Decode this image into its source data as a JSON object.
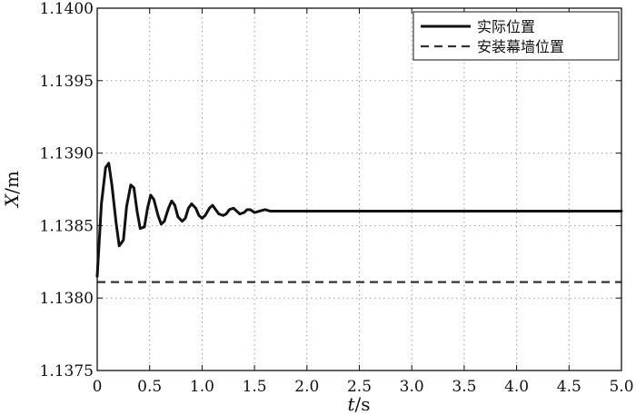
{
  "chart_data": {
    "type": "line",
    "xlabel": {
      "italic": "t",
      "rest": "/s"
    },
    "ylabel": {
      "italic": "X",
      "rest": "/m"
    },
    "xlim": [
      0,
      5.0
    ],
    "ylim": [
      1.1375,
      1.14
    ],
    "x_ticks": [
      0,
      0.5,
      1.0,
      1.5,
      2.0,
      2.5,
      3.0,
      3.5,
      4.0,
      4.5,
      5.0
    ],
    "x_tick_labels": [
      "0",
      "0.5",
      "1.0",
      "1.5",
      "2.0",
      "2.5",
      "3.0",
      "3.5",
      "4.0",
      "4.5",
      "5.0"
    ],
    "y_ticks": [
      1.1375,
      1.138,
      1.1385,
      1.139,
      1.1395,
      1.14
    ],
    "y_tick_labels": [
      "1.1375",
      "1.1380",
      "1.1385",
      "1.1390",
      "1.1395",
      "1.1400"
    ],
    "grid": true,
    "legend_position": "top-right",
    "series": [
      {
        "name": "实际位置",
        "style": "solid",
        "color": "#111111",
        "x": [
          0.0,
          0.04,
          0.08,
          0.11,
          0.14,
          0.18,
          0.21,
          0.25,
          0.28,
          0.32,
          0.35,
          0.38,
          0.41,
          0.45,
          0.48,
          0.51,
          0.54,
          0.58,
          0.61,
          0.64,
          0.68,
          0.71,
          0.74,
          0.77,
          0.81,
          0.84,
          0.87,
          0.9,
          0.94,
          0.97,
          1.0,
          1.03,
          1.07,
          1.1,
          1.13,
          1.16,
          1.2,
          1.23,
          1.26,
          1.3,
          1.33,
          1.36,
          1.4,
          1.43,
          1.46,
          1.5,
          1.55,
          1.6,
          1.65,
          1.7,
          1.75,
          1.8,
          1.9,
          2.0,
          2.2,
          2.5,
          3.0,
          3.5,
          4.0,
          4.5,
          5.0
        ],
        "y": [
          1.13815,
          1.13865,
          1.1389,
          1.13893,
          1.13878,
          1.13852,
          1.13836,
          1.1384,
          1.13863,
          1.13878,
          1.13876,
          1.1386,
          1.13848,
          1.13849,
          1.13862,
          1.13871,
          1.13868,
          1.13857,
          1.13851,
          1.13853,
          1.13862,
          1.13867,
          1.13864,
          1.13856,
          1.13853,
          1.13855,
          1.13862,
          1.13865,
          1.13862,
          1.13857,
          1.13855,
          1.13857,
          1.13862,
          1.13864,
          1.13861,
          1.13858,
          1.13857,
          1.13858,
          1.13861,
          1.13862,
          1.1386,
          1.13858,
          1.13859,
          1.13861,
          1.13861,
          1.13859,
          1.1386,
          1.13861,
          1.1386,
          1.1386,
          1.1386,
          1.1386,
          1.1386,
          1.1386,
          1.1386,
          1.1386,
          1.1386,
          1.1386,
          1.1386,
          1.1386,
          1.1386
        ]
      },
      {
        "name": "安装幕墙位置",
        "style": "dashed",
        "color": "#333333",
        "x": [
          0,
          5.0
        ],
        "y": [
          1.13811,
          1.13811
        ]
      }
    ]
  }
}
